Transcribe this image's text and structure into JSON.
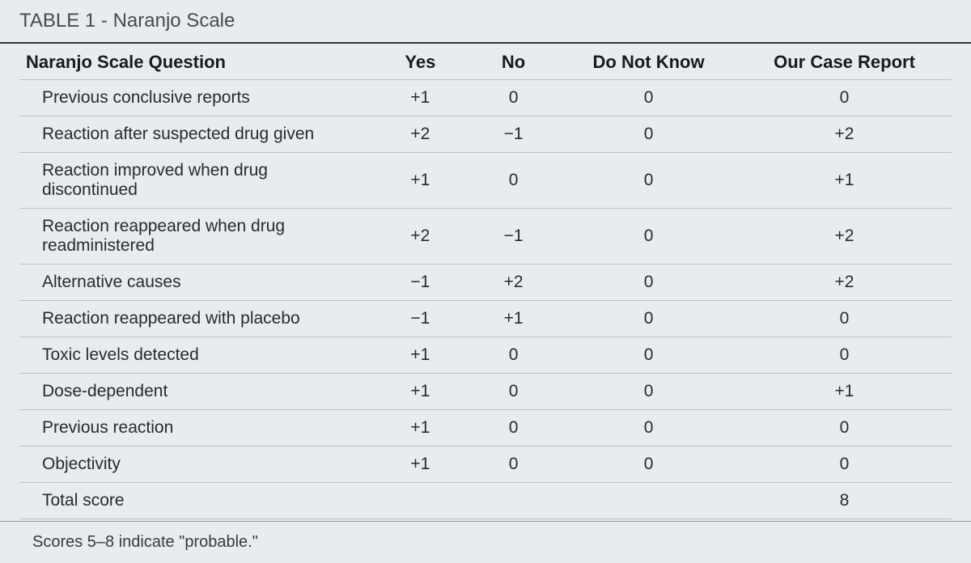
{
  "table": {
    "title": "TABLE 1 - Naranjo Scale",
    "columns": {
      "question": "Naranjo Scale Question",
      "yes": "Yes",
      "no": "No",
      "dnk": "Do Not Know",
      "report": "Our Case Report"
    },
    "rows": [
      {
        "question": "Previous conclusive reports",
        "yes": "+1",
        "no": "0",
        "dnk": "0",
        "report": "0"
      },
      {
        "question": "Reaction after suspected drug given",
        "yes": "+2",
        "no": "−1",
        "dnk": "0",
        "report": "+2"
      },
      {
        "question": "Reaction improved when drug discontinued",
        "yes": "+1",
        "no": "0",
        "dnk": "0",
        "report": "+1"
      },
      {
        "question": "Reaction reappeared when drug readministered",
        "yes": "+2",
        "no": "−1",
        "dnk": "0",
        "report": "+2"
      },
      {
        "question": "Alternative causes",
        "yes": "−1",
        "no": "+2",
        "dnk": "0",
        "report": "+2"
      },
      {
        "question": "Reaction reappeared with placebo",
        "yes": "−1",
        "no": "+1",
        "dnk": "0",
        "report": "0"
      },
      {
        "question": "Toxic levels detected",
        "yes": "+1",
        "no": "0",
        "dnk": "0",
        "report": "0"
      },
      {
        "question": "Dose-dependent",
        "yes": "+1",
        "no": "0",
        "dnk": "0",
        "report": "+1"
      },
      {
        "question": "Previous reaction",
        "yes": "+1",
        "no": "0",
        "dnk": "0",
        "report": "0"
      },
      {
        "question": "Objectivity",
        "yes": "+1",
        "no": "0",
        "dnk": "0",
        "report": "0"
      },
      {
        "question": "Total score",
        "yes": "",
        "no": "",
        "dnk": "",
        "report": "8"
      }
    ],
    "footnote": "Scores 5–8 indicate \"probable.\"",
    "styling": {
      "background_color": "#e8ecef",
      "title_fontsize": 24,
      "title_color": "#4a4a4a",
      "header_fontsize": 22,
      "header_color": "#1a1a1a",
      "cell_fontsize": 21,
      "cell_color": "#2a2a2a",
      "border_color": "#c0c0c0",
      "title_border_color": "#333333",
      "footnote_fontsize": 20,
      "footnote_color": "#3a3a3a",
      "column_widths": {
        "question": "38%",
        "yes": "10%",
        "no": "10%",
        "dnk": "19%",
        "report": "23%"
      }
    }
  }
}
